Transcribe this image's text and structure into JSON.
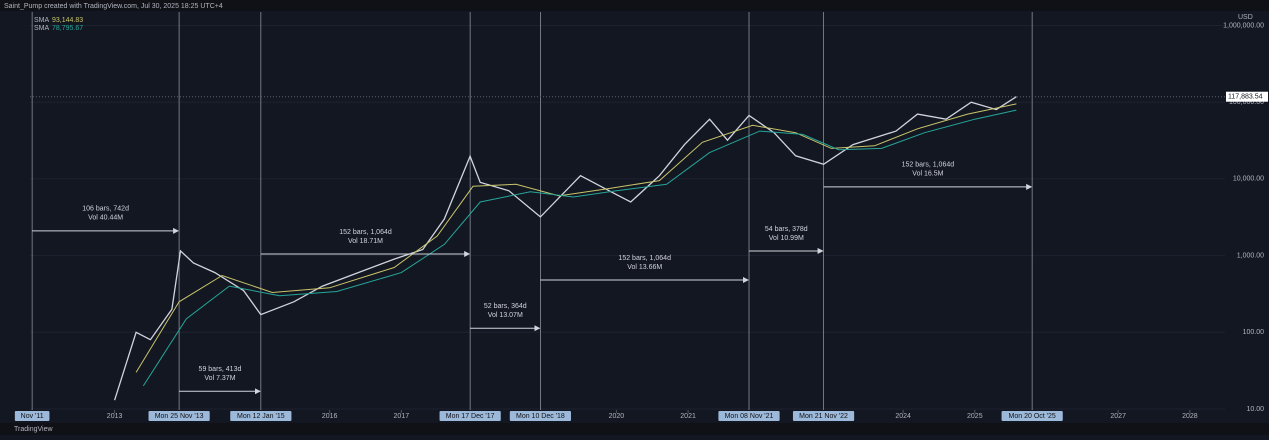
{
  "chart_data": {
    "type": "line",
    "header": "Saint_Pump created with TradingView.com, Jul 30, 2025 18:25 UTC+4",
    "currency": "USD",
    "footer": "TradingView",
    "log_scale": true,
    "xlim": [
      2011.82,
      2028.49
    ],
    "ylim": [
      9.7,
      1500000
    ],
    "xticks": [
      2013,
      2016,
      2017,
      2020,
      2021,
      2024,
      2025,
      2027,
      2028
    ],
    "yticks": [
      {
        "value": 10,
        "label": "10.00"
      },
      {
        "value": 100,
        "label": "100.00"
      },
      {
        "value": 1000,
        "label": "1,000.00"
      },
      {
        "value": 10000,
        "label": "10,000.00"
      },
      {
        "value": 100000,
        "label": "100,000.00"
      },
      {
        "value": 1000000,
        "label": "1,000,000.00"
      }
    ],
    "last_price": {
      "value": 117883.54,
      "label": "117,883.54"
    },
    "series": [
      {
        "name": "",
        "color": "#d1d4dc",
        "x": [
          2013.0,
          2013.3,
          2013.5,
          2013.8,
          2013.92,
          2014.1,
          2014.4,
          2014.8,
          2015.04,
          2015.5,
          2015.9,
          2016.5,
          2016.9,
          2017.3,
          2017.6,
          2017.96,
          2018.1,
          2018.5,
          2018.94,
          2019.5,
          2019.9,
          2020.2,
          2020.6,
          2020.95,
          2021.3,
          2021.55,
          2021.85,
          2022.2,
          2022.5,
          2022.89,
          2023.3,
          2023.9,
          2024.2,
          2024.6,
          2024.95,
          2025.3,
          2025.58
        ],
        "values": [
          13,
          100,
          80,
          200,
          1150,
          800,
          600,
          350,
          170,
          250,
          400,
          650,
          900,
          1200,
          3000,
          19700,
          9000,
          7000,
          3200,
          11000,
          7000,
          5000,
          11000,
          28000,
          60000,
          32000,
          67000,
          40000,
          20000,
          15500,
          28000,
          42000,
          70000,
          60000,
          100000,
          80000,
          117883
        ]
      },
      {
        "name": "SMA",
        "legend_value": "93,144.83",
        "color": "#c9c46a",
        "x": [
          2013.3,
          2013.9,
          2014.5,
          2015.2,
          2016.0,
          2016.9,
          2017.5,
          2018.0,
          2018.6,
          2019.2,
          2019.9,
          2020.6,
          2021.2,
          2021.9,
          2022.5,
          2023.0,
          2023.6,
          2024.2,
          2024.9,
          2025.58
        ],
        "values": [
          30,
          250,
          550,
          330,
          380,
          700,
          1800,
          8000,
          8500,
          6000,
          7500,
          9500,
          30000,
          50000,
          40000,
          25000,
          27000,
          45000,
          70000,
          95000
        ]
      },
      {
        "name": "SMA",
        "legend_value": "78,795.67",
        "color": "#26a69a",
        "x": [
          2013.4,
          2014.0,
          2014.6,
          2015.3,
          2016.1,
          2017.0,
          2017.6,
          2018.1,
          2018.8,
          2019.4,
          2020.0,
          2020.7,
          2021.3,
          2022.0,
          2022.6,
          2023.1,
          2023.7,
          2024.3,
          2025.0,
          2025.58
        ],
        "values": [
          20,
          150,
          400,
          300,
          340,
          600,
          1400,
          5000,
          6800,
          5800,
          7000,
          8500,
          22000,
          42000,
          38000,
          24000,
          25000,
          40000,
          60000,
          79000
        ]
      }
    ],
    "markers": [
      {
        "x": 2011.85,
        "label": "Nov '11"
      },
      {
        "x": 2013.9,
        "label": "Mon 25 Nov '13"
      },
      {
        "x": 2015.04,
        "label": "Mon 12 Jan '15"
      },
      {
        "x": 2017.96,
        "label": "Mon 17 Dec '17"
      },
      {
        "x": 2018.94,
        "label": "Mon 10 Dec '18"
      },
      {
        "x": 2021.85,
        "label": "Mon 08 Nov '21"
      },
      {
        "x": 2022.89,
        "label": "Mon 21 Nov '22"
      },
      {
        "x": 2025.8,
        "label": "Mon 20 Oct '25"
      }
    ],
    "measures": [
      {
        "x0": 2011.85,
        "x1": 2013.9,
        "price": 2100,
        "bars": "106 bars, 742d",
        "vol": "Vol 40.44M"
      },
      {
        "x0": 2013.9,
        "x1": 2015.04,
        "price": 17,
        "bars": "59 bars, 413d",
        "vol": "Vol 7.37M"
      },
      {
        "x0": 2015.04,
        "x1": 2017.96,
        "price": 1050,
        "bars": "152 bars, 1,064d",
        "vol": "Vol 18.71M"
      },
      {
        "x0": 2017.96,
        "x1": 2018.94,
        "price": 113,
        "bars": "52 bars, 364d",
        "vol": "Vol 13.07M"
      },
      {
        "x0": 2018.94,
        "x1": 2021.85,
        "price": 481,
        "bars": "152 bars, 1,064d",
        "vol": "Vol 13.66M"
      },
      {
        "x0": 2021.85,
        "x1": 2022.89,
        "price": 1150,
        "bars": "54 bars, 378d",
        "vol": "Vol 10.99M"
      },
      {
        "x0": 2022.89,
        "x1": 2025.8,
        "price": 7870,
        "bars": "152 bars, 1,064d",
        "vol": "Vol 16.5M"
      }
    ]
  }
}
